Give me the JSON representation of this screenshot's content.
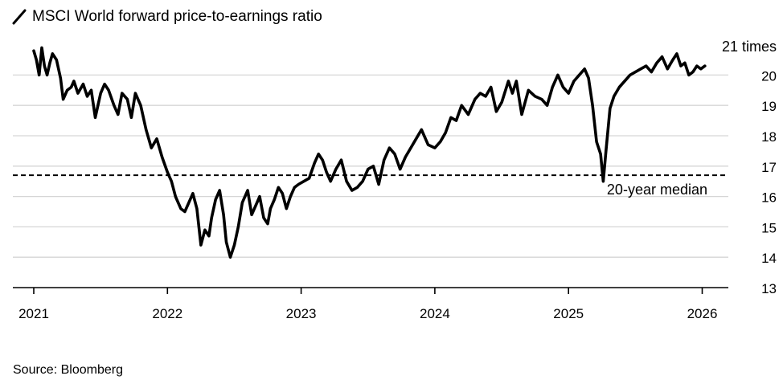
{
  "chart_data": {
    "type": "line",
    "title": "MSCI World forward price-to-earnings ratio",
    "unit_label": "21 times",
    "source": "Source: Bloomberg",
    "xlabel": "",
    "ylabel": "",
    "x_ticks": [
      "2021",
      "2022",
      "2023",
      "2024",
      "2025",
      "2026"
    ],
    "y_ticks": [
      13,
      14,
      15,
      16,
      17,
      18,
      19,
      20
    ],
    "ylim": [
      13,
      21
    ],
    "xlim": [
      2021.0,
      2026.2
    ],
    "grid": true,
    "median": {
      "value": 16.7,
      "label": "20-year median"
    },
    "series": [
      {
        "name": "MSCI World forward P/E",
        "x": [
          2021.0,
          2021.02,
          2021.04,
          2021.06,
          2021.08,
          2021.1,
          2021.12,
          2021.14,
          2021.17,
          2021.2,
          2021.22,
          2021.25,
          2021.28,
          2021.3,
          2021.33,
          2021.37,
          2021.4,
          2021.43,
          2021.46,
          2021.5,
          2021.53,
          2021.56,
          2021.6,
          2021.63,
          2021.66,
          2021.7,
          2021.73,
          2021.76,
          2021.8,
          2021.84,
          2021.88,
          2021.92,
          2021.96,
          2022.0,
          2022.03,
          2022.06,
          2022.1,
          2022.13,
          2022.16,
          2022.19,
          2022.22,
          2022.25,
          2022.28,
          2022.31,
          2022.33,
          2022.36,
          2022.39,
          2022.42,
          2022.44,
          2022.47,
          2022.5,
          2022.53,
          2022.56,
          2022.6,
          2022.63,
          2022.66,
          2022.69,
          2022.72,
          2022.75,
          2022.77,
          2022.8,
          2022.83,
          2022.86,
          2022.89,
          2022.92,
          2022.95,
          2022.98,
          2023.02,
          2023.06,
          2023.1,
          2023.13,
          2023.16,
          2023.19,
          2023.22,
          2023.26,
          2023.3,
          2023.34,
          2023.38,
          2023.42,
          2023.46,
          2023.5,
          2023.54,
          2023.58,
          2023.62,
          2023.66,
          2023.7,
          2023.74,
          2023.78,
          2023.82,
          2023.86,
          2023.9,
          2023.95,
          2024.0,
          2024.04,
          2024.08,
          2024.12,
          2024.16,
          2024.2,
          2024.25,
          2024.3,
          2024.34,
          2024.38,
          2024.42,
          2024.46,
          2024.5,
          2024.55,
          2024.58,
          2024.61,
          2024.65,
          2024.7,
          2024.75,
          2024.8,
          2024.84,
          2024.88,
          2024.92,
          2024.96,
          2025.0,
          2025.04,
          2025.08,
          2025.12,
          2025.15,
          2025.18,
          2025.21,
          2025.24,
          2025.26,
          2025.28,
          2025.31,
          2025.34,
          2025.38,
          2025.42,
          2025.46,
          2025.5,
          2025.54,
          2025.58,
          2025.62,
          2025.66,
          2025.7,
          2025.74,
          2025.78,
          2025.81,
          2025.84,
          2025.87,
          2025.9,
          2025.93,
          2025.96,
          2025.99,
          2026.02
        ],
        "values": [
          20.8,
          20.5,
          20.0,
          20.9,
          20.3,
          20.0,
          20.4,
          20.7,
          20.5,
          19.9,
          19.2,
          19.5,
          19.6,
          19.8,
          19.4,
          19.7,
          19.3,
          19.5,
          18.6,
          19.4,
          19.7,
          19.5,
          19.0,
          18.7,
          19.4,
          19.2,
          18.6,
          19.4,
          19.0,
          18.2,
          17.6,
          17.9,
          17.3,
          16.8,
          16.5,
          16.0,
          15.6,
          15.5,
          15.8,
          16.1,
          15.6,
          14.4,
          14.9,
          14.7,
          15.3,
          15.9,
          16.2,
          15.4,
          14.5,
          14.0,
          14.4,
          15.0,
          15.8,
          16.2,
          15.4,
          15.7,
          16.0,
          15.3,
          15.1,
          15.6,
          15.9,
          16.3,
          16.1,
          15.6,
          16.0,
          16.3,
          16.4,
          16.5,
          16.6,
          17.1,
          17.4,
          17.2,
          16.8,
          16.5,
          16.9,
          17.2,
          16.5,
          16.2,
          16.3,
          16.5,
          16.9,
          17.0,
          16.4,
          17.2,
          17.6,
          17.4,
          16.9,
          17.3,
          17.6,
          17.9,
          18.2,
          17.7,
          17.6,
          17.8,
          18.1,
          18.6,
          18.5,
          19.0,
          18.7,
          19.2,
          19.4,
          19.3,
          19.6,
          18.8,
          19.1,
          19.8,
          19.4,
          19.8,
          18.7,
          19.5,
          19.3,
          19.2,
          19.0,
          19.6,
          20.0,
          19.6,
          19.4,
          19.8,
          20.0,
          20.2,
          19.9,
          19.0,
          17.8,
          17.4,
          16.5,
          17.5,
          18.9,
          19.3,
          19.6,
          19.8,
          20.0,
          20.1,
          20.2,
          20.3,
          20.1,
          20.4,
          20.6,
          20.2,
          20.5,
          20.7,
          20.3,
          20.4,
          20.0,
          20.1,
          20.3,
          20.2,
          20.3
        ]
      }
    ]
  }
}
